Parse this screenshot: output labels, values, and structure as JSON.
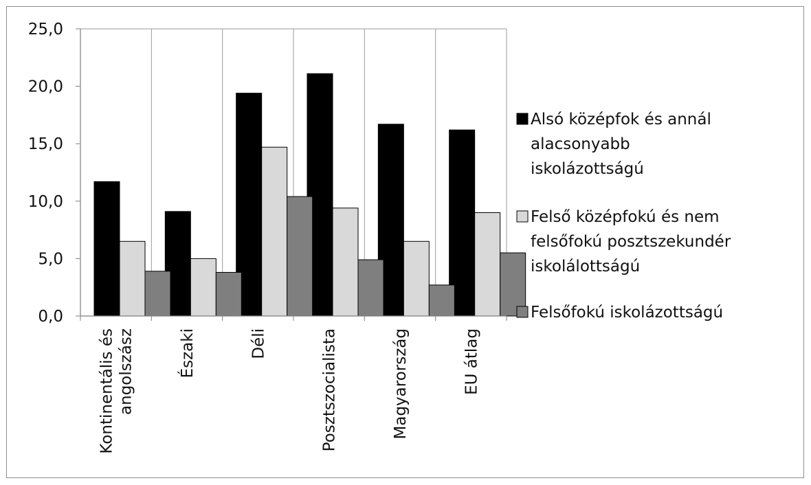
{
  "chart_data": {
    "type": "bar",
    "categories": [
      [
        "Kontinentális és",
        "angolszász"
      ],
      [
        "Északi"
      ],
      [
        "Déli"
      ],
      [
        "Posztszocialista"
      ],
      [
        "Magyarország"
      ],
      [
        "EU átlag"
      ]
    ],
    "series": [
      {
        "name_lines": [
          "Alsó középfok és annál",
          "alacsonyabb",
          "iskolázottságú"
        ],
        "color": "#000000",
        "values": [
          11.7,
          9.1,
          19.4,
          21.1,
          16.7,
          16.2
        ]
      },
      {
        "name_lines": [
          "Felső középfokú és nem",
          "felsőfokú posztszekundér",
          "iskolálottságú"
        ],
        "color": "#d9d9d9",
        "values": [
          6.5,
          5.0,
          14.7,
          9.4,
          6.5,
          9.0
        ]
      },
      {
        "name_lines": [
          "Felsőfokú iskolázottságú"
        ],
        "color": "#7f7f7f",
        "values": [
          3.9,
          3.8,
          10.4,
          4.9,
          2.7,
          5.5
        ]
      }
    ],
    "y_ticks": [
      "0,0",
      "5,0",
      "10,0",
      "15,0",
      "20,0",
      "25,0"
    ],
    "ylim": [
      0,
      25
    ],
    "grid": "vertical category separators",
    "legend": "right"
  }
}
